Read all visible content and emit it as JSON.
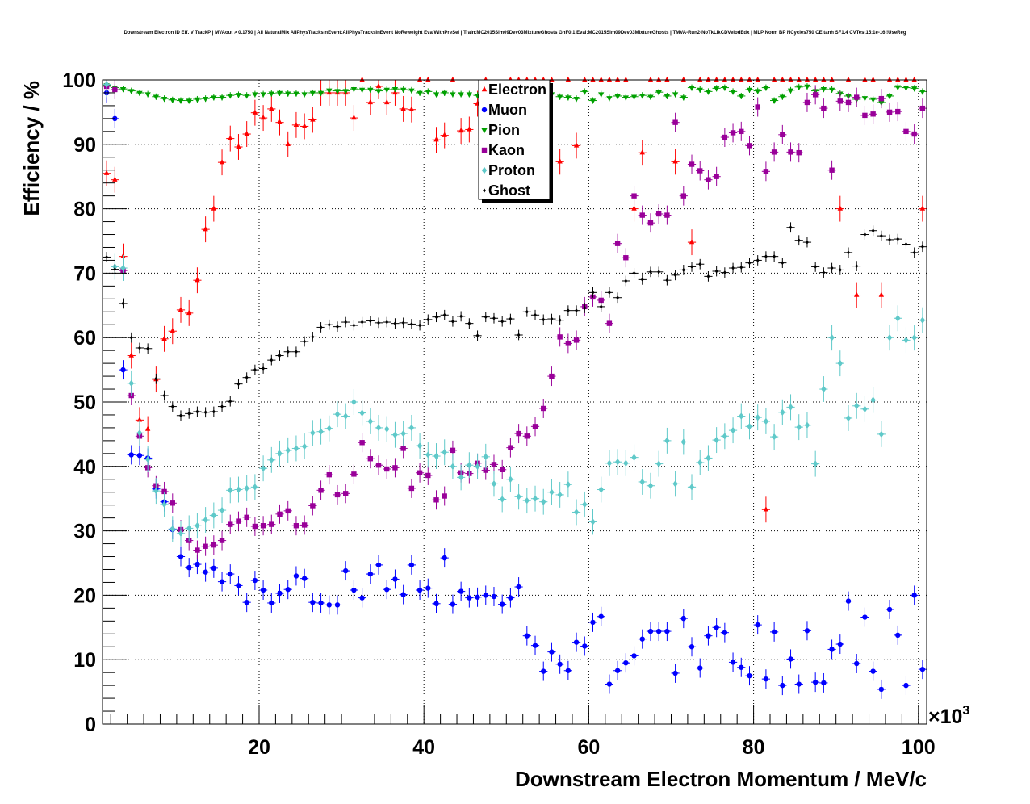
{
  "chart_data": {
    "type": "scatter",
    "title": "Downstream Electron ID Eff. V TrackP | MVAout > 0.1750 | All NaturalMix AllPhysTracksInEvent:AllPhysTracksInEvent NoReweight EvalWithPreSel | Train:MC2015Sim09Dev03MixtureGhosts GhF0.1 Eval:MC2015Sim09Dev03MixtureGhosts | TMVA-Run2-NoTkLikCDVelodEdx | MLP Norm BP NCycles750 CE tanh SF1.4 CVTest15:1e-16 !UseReg",
    "xlabel": "Downstream Electron Momentum / MeV/c",
    "ylabel": "Efficiency / %",
    "x_exponent_label": "×10",
    "x_exponent_power": "3",
    "xlim": [
      1000,
      101000
    ],
    "ylim": [
      0,
      100
    ],
    "x_ticks": [
      20000,
      40000,
      60000,
      80000,
      100000
    ],
    "x_tick_labels": [
      "20",
      "40",
      "60",
      "80",
      "100"
    ],
    "y_ticks": [
      0,
      10,
      20,
      30,
      40,
      50,
      60,
      70,
      80,
      90,
      100
    ],
    "y_tick_labels": [
      "0",
      "10",
      "20",
      "30",
      "40",
      "50",
      "60",
      "70",
      "80",
      "90",
      "100"
    ],
    "grid": true,
    "legend_position": "top-center",
    "x": [
      1500,
      2500,
      3500,
      4500,
      5500,
      6500,
      7500,
      8500,
      9500,
      10500,
      11500,
      12500,
      13500,
      14500,
      15500,
      16500,
      17500,
      18500,
      19500,
      20500,
      21500,
      22500,
      23500,
      24500,
      25500,
      26500,
      27500,
      28500,
      29500,
      30500,
      31500,
      32500,
      33500,
      34500,
      35500,
      36500,
      37500,
      38500,
      39500,
      40500,
      41500,
      42500,
      43500,
      44500,
      45500,
      46500,
      47500,
      48500,
      49500,
      50500,
      51500,
      52500,
      53500,
      54500,
      55500,
      56500,
      57500,
      58500,
      59500,
      60500,
      61500,
      62500,
      63500,
      64500,
      65500,
      66500,
      67500,
      68500,
      69500,
      70500,
      71500,
      72500,
      73500,
      74500,
      75500,
      76500,
      77500,
      78500,
      79500,
      80500,
      81500,
      82500,
      83500,
      84500,
      85500,
      86500,
      87500,
      88500,
      89500,
      90500,
      91500,
      92500,
      93500,
      94500,
      95500,
      96500,
      97500,
      98500,
      99500,
      100500
    ],
    "series": [
      {
        "name": "Electron",
        "color": "#ff0000",
        "marker": "triangle-up",
        "err_default": 2,
        "values": [
          85.5,
          84.5,
          72.6,
          57.2,
          47.2,
          45.8,
          53.5,
          59.8,
          61,
          64.3,
          63.8,
          68.9,
          76.8,
          80,
          87.2,
          90.9,
          89.6,
          91.6,
          94.9,
          94.1,
          95.5,
          93.4,
          90,
          93,
          92.8,
          93.8,
          98,
          98,
          98,
          98,
          94.1,
          100,
          96.5,
          99,
          96.5,
          98,
          95.5,
          95.4,
          100,
          100,
          90.7,
          91.4,
          100,
          92.1,
          92.3,
          96.3,
          100,
          97.6,
          98.5,
          100,
          100,
          100,
          100,
          100,
          100,
          87.3,
          100,
          89.8,
          100,
          100,
          100,
          100,
          100,
          100,
          80,
          88.7,
          100,
          100,
          100,
          87.3,
          100,
          74.8,
          100,
          100,
          100,
          100,
          100,
          100,
          100,
          100,
          33.3,
          100,
          100,
          100,
          100,
          100,
          100,
          100,
          100,
          80,
          100,
          66.6,
          100,
          100,
          66.6,
          100,
          100,
          100,
          100,
          80
        ]
      },
      {
        "name": "Muon",
        "color": "#0000ff",
        "marker": "circle",
        "err_default": 1.5,
        "values": [
          98,
          94,
          55,
          41.8,
          41.7,
          41.3,
          36.5,
          34.5,
          30.2,
          26,
          24.3,
          24.8,
          23.6,
          24.2,
          22.1,
          23.3,
          21.5,
          18.9,
          22.3,
          20.8,
          18.8,
          20.3,
          20.9,
          23,
          22.6,
          18.9,
          18.8,
          18.5,
          18.5,
          23.8,
          20.8,
          19.6,
          23.3,
          24.7,
          20.9,
          22.5,
          20.1,
          24.7,
          20.8,
          21.1,
          18.7,
          25.8,
          18.6,
          20.6,
          19.6,
          19.7,
          20,
          19.8,
          18.6,
          19.6,
          21.3,
          13.7,
          12.2,
          8.2,
          11.2,
          9.3,
          8.3,
          12.7,
          12.1,
          15.8,
          16.7,
          6.2,
          8.3,
          9.5,
          10.6,
          13.2,
          14.4,
          14.4,
          14.4,
          7.9,
          16.4,
          12,
          8.7,
          13.7,
          15,
          14.2,
          9.6,
          8.8,
          7.5,
          15.4,
          7,
          14.3,
          6,
          10.1,
          6.2,
          14.5,
          6.5,
          6.4,
          11.6,
          12.4,
          19.1,
          9.4,
          16.6,
          8.2,
          5.4,
          17.8,
          13.8,
          6,
          20,
          8.5
        ]
      },
      {
        "name": "Pion",
        "color": "#00a000",
        "marker": "triangle-down",
        "err_default": 0.5,
        "values": [
          99.2,
          98.8,
          98.6,
          98.3,
          98,
          97.8,
          97.4,
          97.1,
          96.9,
          96.8,
          96.8,
          97,
          97.1,
          97.3,
          97.3,
          97.6,
          97.7,
          97.6,
          97.8,
          97.8,
          97.9,
          98,
          97.9,
          97.9,
          97.8,
          98,
          98,
          98.4,
          98.3,
          98.3,
          98.6,
          98.5,
          98.5,
          98.3,
          98.5,
          98.6,
          98.5,
          98.4,
          98,
          98.2,
          97.8,
          98,
          97.8,
          97.8,
          97.8,
          97.6,
          97.5,
          97.2,
          97.5,
          97.8,
          97.6,
          97.9,
          97.7,
          98,
          97.8,
          97.4,
          97.3,
          97.1,
          98.2,
          96.8,
          97.8,
          97.2,
          97.5,
          97.3,
          97.4,
          97.6,
          97.4,
          98.1,
          97.5,
          97.8,
          97.3,
          98.8,
          98.5,
          98.2,
          98.7,
          98.8,
          98.2,
          97.5,
          98.5,
          98.3,
          98.8,
          96.8,
          97.4,
          98.4,
          98.9,
          99,
          98.3,
          98.6,
          98.5,
          97.9,
          97.5,
          97,
          97.2,
          97,
          96.5,
          97.5,
          98.9,
          98.8,
          98.7,
          98.2
        ]
      },
      {
        "name": "Kaon",
        "color": "#990099",
        "marker": "square",
        "err_default": 1.5,
        "values": [
          99,
          98.5,
          70.4,
          51,
          44.7,
          39.8,
          37,
          36.1,
          34.3,
          30.2,
          28.5,
          27,
          27.6,
          27.8,
          28.5,
          31,
          31.5,
          32.1,
          30.7,
          30.8,
          31,
          32.6,
          33.1,
          30.8,
          30.9,
          33.9,
          36.3,
          38.7,
          35.6,
          35.8,
          38.8,
          43.7,
          41.2,
          40.2,
          39.6,
          39.8,
          42.8,
          36.6,
          39,
          38.6,
          34.8,
          35.4,
          42.5,
          39,
          38.9,
          40.5,
          39.4,
          40.3,
          39.5,
          42.9,
          45.1,
          44.7,
          46.2,
          49,
          54,
          60.1,
          59.1,
          59.6,
          64.8,
          66.3,
          65.8,
          62.2,
          74.6,
          72.4,
          82,
          79,
          77.8,
          79.2,
          79,
          93.4,
          82,
          86.9,
          85.9,
          84.5,
          85,
          91.1,
          91.8,
          92,
          89.8,
          95.8,
          85.8,
          88.8,
          91.5,
          88.8,
          88.7,
          96.5,
          97.7,
          95.6,
          86,
          96.7,
          96.5,
          97.3,
          94.5,
          94.7,
          97.1,
          95,
          95.1,
          92,
          91.6,
          95.6
        ]
      },
      {
        "name": "Proton",
        "color": "#5fc9c9",
        "marker": "diamond",
        "err_default": 2,
        "values": [
          99.3,
          71,
          70.8,
          52.9,
          45.2,
          41.1,
          36.2,
          34.1,
          30.3,
          29.6,
          30.4,
          30.8,
          31.7,
          32.4,
          33.2,
          36.3,
          36.4,
          36.6,
          36.8,
          39.7,
          41,
          42,
          42.5,
          42.8,
          43.1,
          45.2,
          45.4,
          45.9,
          48.1,
          47.8,
          50,
          48.3,
          47,
          46,
          45.8,
          44.9,
          45.1,
          46,
          43.2,
          41.8,
          41.6,
          42.2,
          40,
          38.3,
          40.2,
          40,
          41.5,
          37.3,
          34.9,
          38,
          35.3,
          34.7,
          35,
          34.5,
          36,
          35.6,
          37.2,
          32.9,
          34.1,
          31.4,
          36.4,
          40.5,
          40.7,
          40.5,
          41.4,
          37.6,
          37,
          40.4,
          44,
          37.3,
          43.8,
          36.8,
          40.6,
          41.3,
          44.1,
          44.7,
          45.6,
          47.8,
          46.2,
          47.6,
          47,
          44.6,
          48.4,
          49.2,
          46.1,
          46.4,
          40.4,
          52,
          60,
          56,
          47.5,
          49.4,
          48.9,
          50.3,
          45,
          60,
          63,
          59.6,
          60,
          62.7
        ]
      },
      {
        "name": "Ghost",
        "color": "#000000",
        "marker": "diamond-small",
        "err_default": 0.8,
        "values": [
          72.5,
          70.6,
          65.3,
          60,
          58.4,
          58.3,
          53.6,
          51,
          49.3,
          47.9,
          48.2,
          48.5,
          48.4,
          48.5,
          49.3,
          50.1,
          52.8,
          53.8,
          55,
          55.2,
          56.5,
          57.2,
          57.8,
          57.8,
          59.4,
          60.1,
          61.6,
          62,
          61.7,
          62.4,
          61.9,
          62.4,
          62.6,
          62.3,
          62.4,
          62.2,
          62.3,
          62.1,
          61.9,
          62.8,
          63.2,
          63.5,
          62.5,
          63.3,
          62.2,
          60.3,
          63.2,
          63,
          62.5,
          62.9,
          60.4,
          64,
          63.5,
          62.8,
          62.9,
          62.7,
          64.2,
          64.2,
          64.6,
          67,
          64.8,
          67,
          66.2,
          68.8,
          70,
          69,
          70.2,
          70.2,
          68.9,
          69.7,
          70.5,
          71,
          71.4,
          69.5,
          70.3,
          70.1,
          70.8,
          70.9,
          71.6,
          72,
          72.6,
          72.6,
          71.6,
          77.1,
          75.1,
          74.8,
          71,
          70.1,
          70.8,
          70.5,
          73.2,
          71.1,
          76,
          76.6,
          75.8,
          75.2,
          75.3,
          74.5,
          73.2,
          74.1
        ]
      }
    ]
  }
}
